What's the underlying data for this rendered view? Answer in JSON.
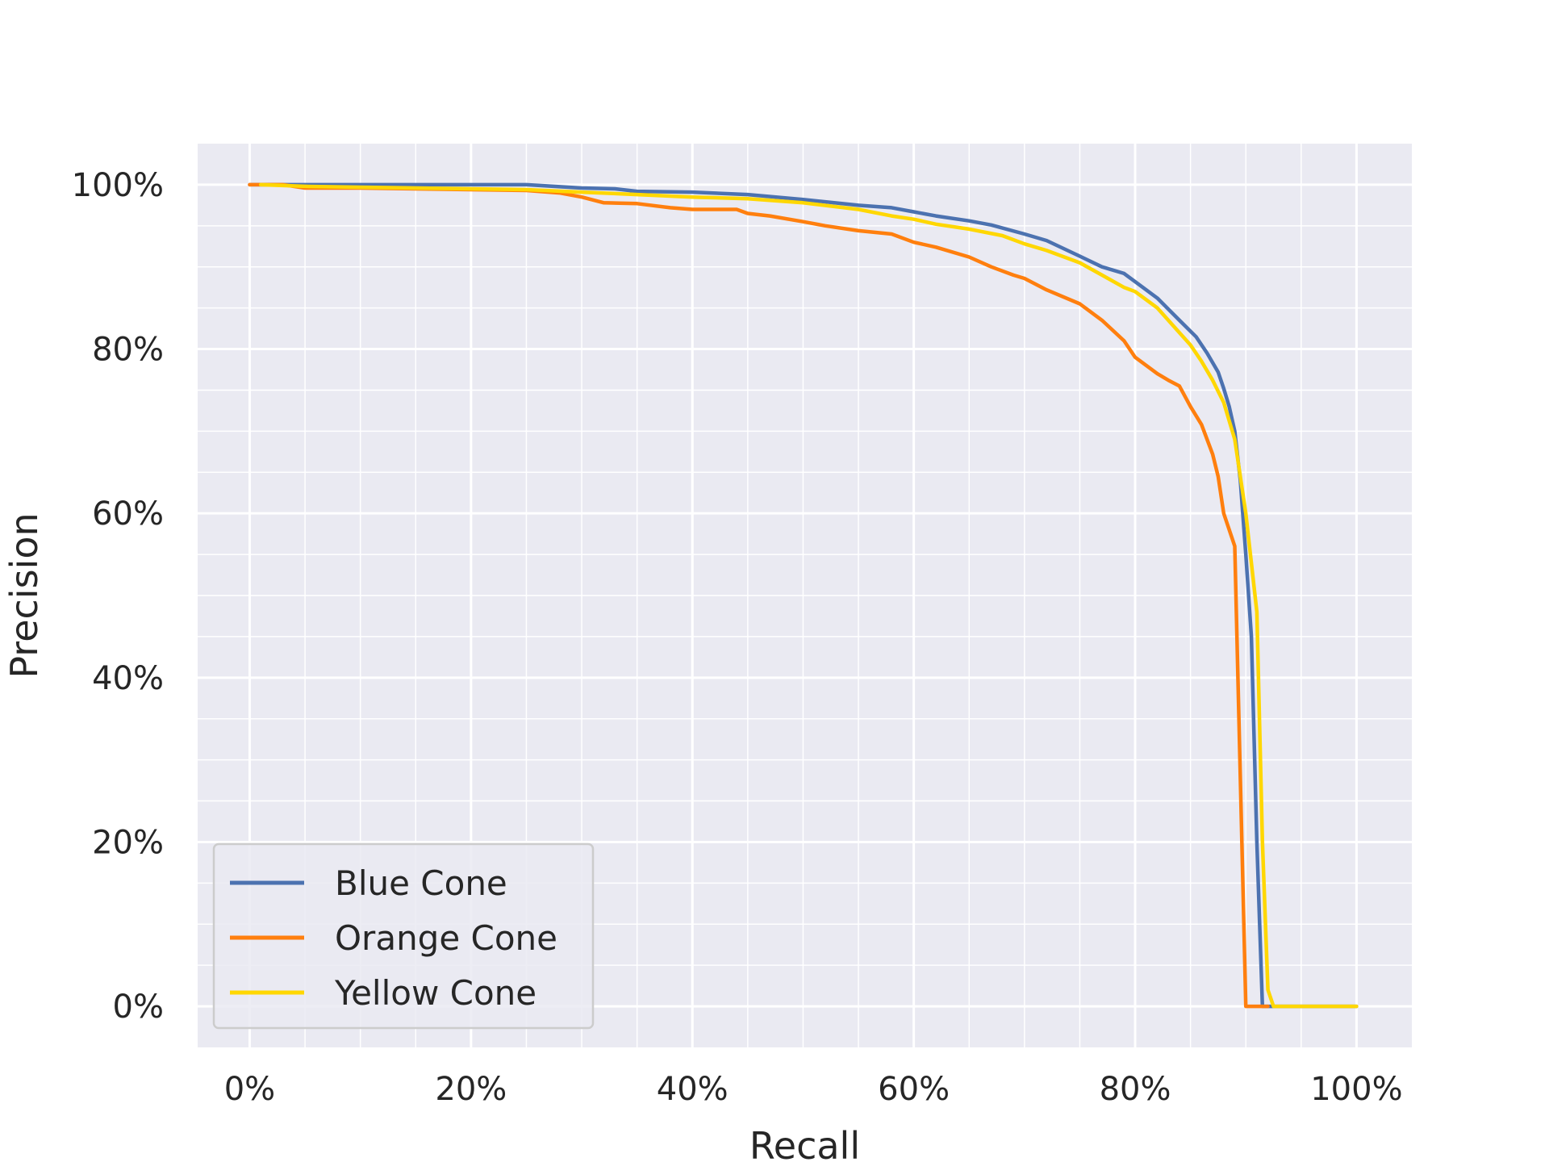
{
  "chart_data": {
    "type": "line",
    "title": "",
    "xlabel": "Recall",
    "ylabel": "Precision",
    "xlim": [
      -0.047,
      1.05
    ],
    "ylim": [
      -0.05,
      1.05
    ],
    "x_ticks": [
      0,
      0.2,
      0.4,
      0.6,
      0.8,
      1.0
    ],
    "x_tick_labels": [
      "0%",
      "20%",
      "40%",
      "60%",
      "80%",
      "100%"
    ],
    "y_ticks": [
      0,
      0.2,
      0.4,
      0.6,
      0.8,
      1.0
    ],
    "y_tick_labels": [
      "0%",
      "20%",
      "40%",
      "60%",
      "80%",
      "100%"
    ],
    "grid": true,
    "minor_grid": true,
    "background": "#eaeaf2",
    "legend_position": "lower-left",
    "series": [
      {
        "name": "Blue Cone",
        "color": "#4c72b0",
        "x": [
          0,
          0.05,
          0.1,
          0.15,
          0.2,
          0.25,
          0.3,
          0.33,
          0.35,
          0.4,
          0.45,
          0.5,
          0.55,
          0.58,
          0.6,
          0.62,
          0.65,
          0.67,
          0.7,
          0.72,
          0.75,
          0.77,
          0.79,
          0.8,
          0.82,
          0.84,
          0.855,
          0.865,
          0.875,
          0.88,
          0.885,
          0.89,
          0.895,
          0.9,
          0.905,
          0.91,
          0.915,
          1.0
        ],
        "y": [
          1.0,
          1.0,
          1.0,
          1.0,
          1.0,
          1.0,
          0.996,
          0.995,
          0.992,
          0.991,
          0.988,
          0.982,
          0.975,
          0.972,
          0.967,
          0.962,
          0.956,
          0.951,
          0.94,
          0.932,
          0.913,
          0.9,
          0.892,
          0.882,
          0.862,
          0.835,
          0.815,
          0.795,
          0.772,
          0.752,
          0.73,
          0.7,
          0.64,
          0.55,
          0.45,
          0.2,
          0,
          0
        ]
      },
      {
        "name": "Orange Cone",
        "color": "#ff7f0e",
        "x": [
          0,
          0.03,
          0.05,
          0.1,
          0.15,
          0.2,
          0.25,
          0.28,
          0.3,
          0.32,
          0.35,
          0.38,
          0.4,
          0.44,
          0.45,
          0.47,
          0.5,
          0.52,
          0.55,
          0.58,
          0.6,
          0.62,
          0.65,
          0.67,
          0.69,
          0.7,
          0.72,
          0.75,
          0.77,
          0.79,
          0.8,
          0.82,
          0.83,
          0.84,
          0.85,
          0.86,
          0.87,
          0.875,
          0.88,
          0.89,
          0.9,
          0.92
        ],
        "y": [
          1.0,
          1.0,
          0.996,
          0.996,
          0.995,
          0.994,
          0.993,
          0.99,
          0.985,
          0.978,
          0.977,
          0.972,
          0.97,
          0.97,
          0.965,
          0.962,
          0.955,
          0.95,
          0.944,
          0.94,
          0.93,
          0.924,
          0.912,
          0.9,
          0.89,
          0.886,
          0.872,
          0.855,
          0.835,
          0.81,
          0.79,
          0.77,
          0.762,
          0.755,
          0.73,
          0.708,
          0.672,
          0.645,
          0.6,
          0.56,
          0,
          0
        ]
      },
      {
        "name": "Yellow Cone",
        "color": "#ffd700",
        "x": [
          0.01,
          0.05,
          0.1,
          0.15,
          0.2,
          0.25,
          0.3,
          0.35,
          0.4,
          0.45,
          0.5,
          0.55,
          0.58,
          0.6,
          0.62,
          0.65,
          0.68,
          0.7,
          0.72,
          0.75,
          0.77,
          0.79,
          0.8,
          0.82,
          0.84,
          0.85,
          0.86,
          0.87,
          0.88,
          0.89,
          0.9,
          0.91,
          0.915,
          0.92,
          0.925,
          1.0
        ],
        "y": [
          1.0,
          0.998,
          0.997,
          0.996,
          0.995,
          0.994,
          0.991,
          0.988,
          0.985,
          0.983,
          0.978,
          0.97,
          0.962,
          0.958,
          0.952,
          0.946,
          0.938,
          0.928,
          0.92,
          0.905,
          0.89,
          0.875,
          0.87,
          0.85,
          0.82,
          0.805,
          0.785,
          0.762,
          0.735,
          0.69,
          0.6,
          0.48,
          0.2,
          0.02,
          0,
          0
        ]
      }
    ]
  }
}
